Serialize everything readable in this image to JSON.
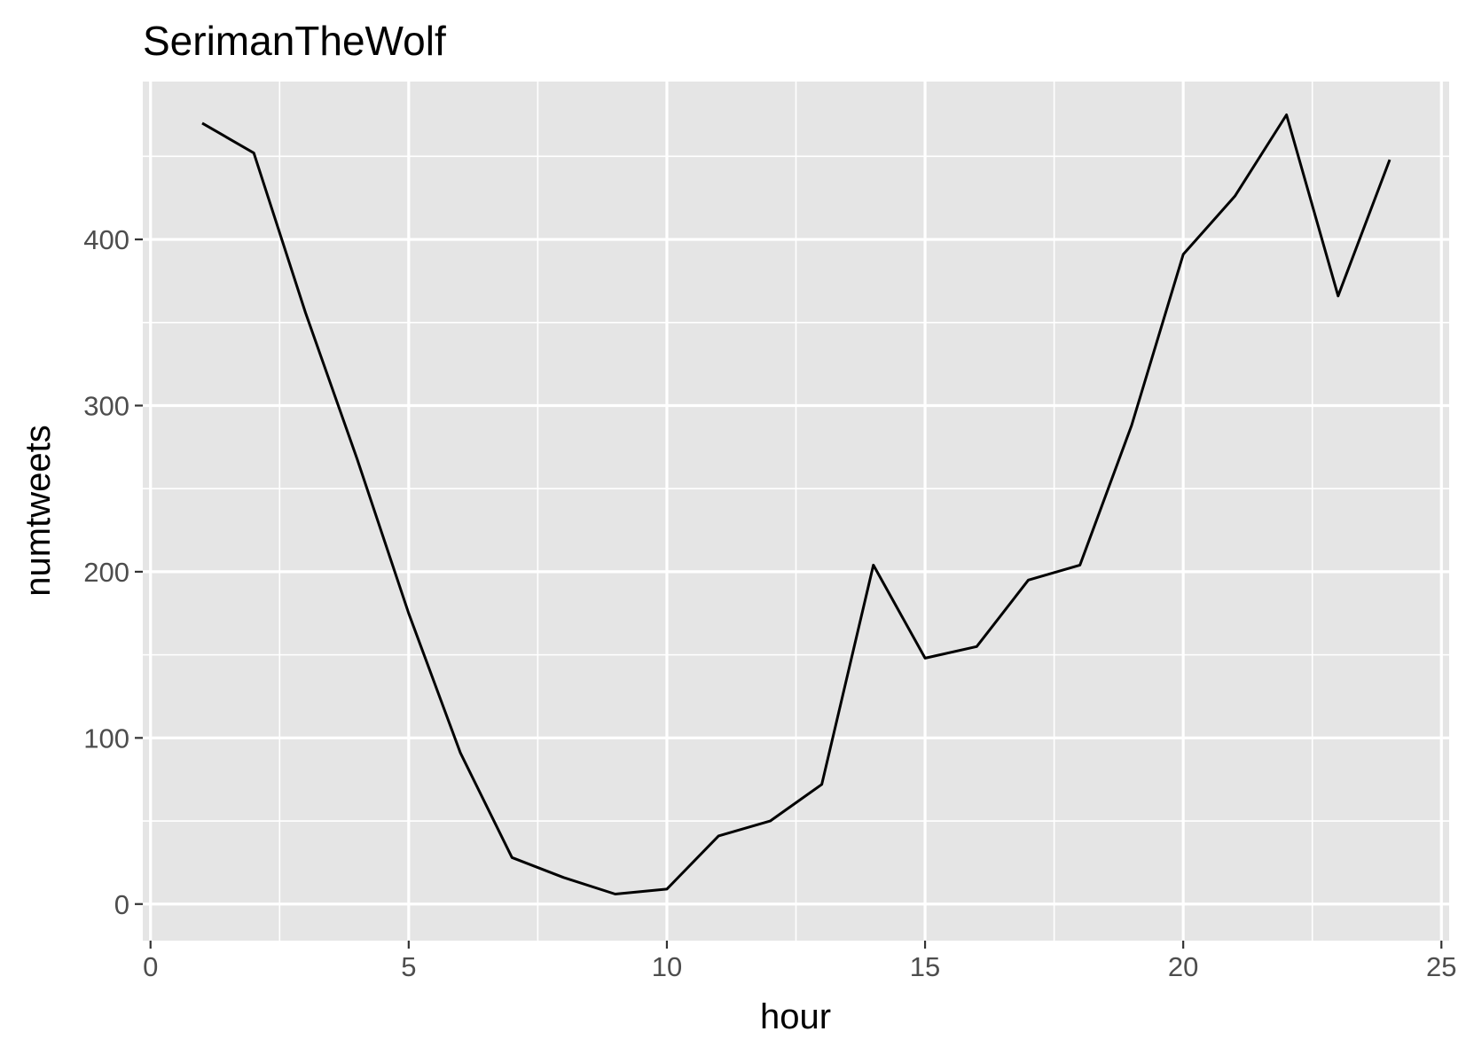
{
  "chart_data": {
    "type": "line",
    "title": "SerimanTheWolf",
    "xlabel": "hour",
    "ylabel": "numtweets",
    "xlim": [
      -0.15,
      25.15
    ],
    "ylim": [
      -22,
      495
    ],
    "x_ticks": [
      0,
      5,
      10,
      15,
      20,
      25
    ],
    "x_tick_labels": [
      "0",
      "5",
      "10",
      "15",
      "20",
      "25"
    ],
    "x_minor_ticks": [
      2.5,
      7.5,
      12.5,
      17.5,
      22.5
    ],
    "y_ticks": [
      0,
      100,
      200,
      300,
      400
    ],
    "y_tick_labels": [
      "0",
      "100",
      "200",
      "300",
      "400"
    ],
    "y_minor_ticks": [
      50,
      150,
      250,
      350,
      450
    ],
    "grid": true,
    "legend": "none",
    "colors": {
      "panel_background": "#e5e5e5",
      "grid": "#ffffff",
      "line": "#000000",
      "tick_label": "#4d4d4d",
      "tick_mark": "#333333"
    },
    "series": [
      {
        "x": [
          1,
          2,
          3,
          4,
          5,
          6,
          7,
          8,
          9,
          10,
          11,
          12,
          13,
          14,
          15,
          16,
          17,
          18,
          19,
          20,
          21,
          22,
          23,
          24
        ],
        "values": [
          470,
          452,
          356,
          268,
          175,
          91,
          28,
          16,
          6,
          9,
          41,
          50,
          72,
          204,
          148,
          155,
          195,
          204,
          288,
          391,
          426,
          475,
          366,
          448
        ]
      }
    ]
  }
}
